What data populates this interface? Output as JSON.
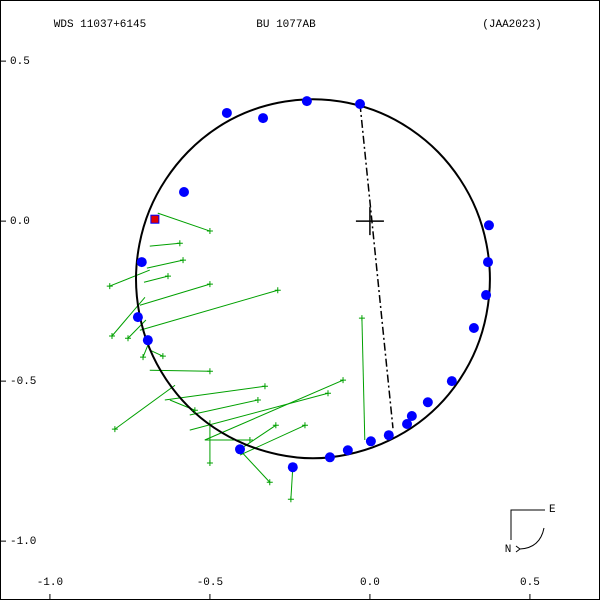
{
  "chart_data": {
    "type": "scatter",
    "title": "BU 1077AB",
    "subtitle": "WDS 11037+6145",
    "reference": "(JAA2023)",
    "compass": {
      "east": "E",
      "north": "N"
    },
    "xlim": [
      -1.156,
      0.719
    ],
    "ylim": [
      -1.184,
      0.691
    ],
    "xticks": [
      {
        "value": -1,
        "label": "-1.0"
      },
      {
        "value": -0.5,
        "label": "-0.5"
      },
      {
        "value": 0,
        "label": "0.0"
      },
      {
        "value": 0.5,
        "label": "0.5"
      }
    ],
    "yticks": [
      {
        "value": 0.5,
        "label": "0.5"
      },
      {
        "value": 0,
        "label": "0.0"
      },
      {
        "value": -0.5,
        "label": "-0.5"
      },
      {
        "value": -1,
        "label": "-1.0"
      }
    ],
    "orbit": {
      "color": "#000000",
      "x": [
        0.375,
        0.333,
        0.213,
        0.034,
        -0.178,
        -0.391,
        -0.569,
        -0.689,
        -0.731,
        -0.689,
        -0.569,
        -0.391,
        -0.178,
        0.034,
        0.213,
        0.333
      ],
      "y": [
        -0.181,
        0.034,
        0.216,
        0.338,
        0.381,
        0.338,
        0.216,
        0.034,
        -0.181,
        -0.397,
        -0.578,
        -0.697,
        -0.741,
        -0.697,
        -0.578,
        -0.397
      ]
    },
    "line_of_nodes": {
      "x": [
        -0.031,
        0.072
      ],
      "y": [
        0.366,
        -0.647
      ]
    },
    "series": [
      {
        "color": "#0000ff",
        "marker": "circle",
        "x": [
          -0.031,
          -0.197,
          -0.334,
          -0.447,
          -0.581,
          -0.713,
          -0.725,
          -0.694,
          -0.406,
          -0.241,
          -0.125,
          -0.069,
          0.003,
          0.059,
          0.116,
          0.131,
          0.181,
          0.256,
          0.325,
          0.363,
          0.369,
          0.372
        ],
        "y": [
          0.366,
          0.375,
          0.322,
          0.338,
          0.091,
          -0.128,
          -0.3,
          -0.372,
          -0.713,
          -0.769,
          -0.738,
          -0.716,
          -0.688,
          -0.669,
          -0.634,
          -0.609,
          -0.566,
          -0.5,
          -0.334,
          -0.231,
          -0.128,
          -0.013
        ]
      },
      {
        "color": "#e00000",
        "marker": "square",
        "x": [
          -0.672
        ],
        "y": [
          0.006
        ]
      },
      {
        "color": "#00a000",
        "marker": "plus",
        "x": [
          -0.5,
          -0.594,
          -0.584,
          -0.631,
          -0.813,
          -0.5,
          -0.288,
          -0.806,
          -0.756,
          -0.647,
          -0.5,
          -0.709,
          -0.328,
          -0.131,
          -0.084,
          -0.35,
          -0.797,
          -0.294,
          -0.547,
          -0.375,
          -0.313,
          -0.247,
          -0.025,
          -0.5,
          -0.203
        ],
        "y": [
          -0.031,
          -0.069,
          -0.122,
          -0.172,
          -0.203,
          -0.197,
          -0.216,
          -0.359,
          -0.366,
          -0.422,
          -0.469,
          -0.425,
          -0.516,
          -0.538,
          -0.497,
          -0.559,
          -0.65,
          -0.638,
          -0.591,
          -0.684,
          -0.816,
          -0.869,
          -0.303,
          -0.756,
          -0.638
        ],
        "x_end": [
          -0.663,
          -0.688,
          -0.697,
          -0.706,
          -0.688,
          -0.719,
          -0.719,
          -0.703,
          -0.7,
          -0.688,
          -0.688,
          -0.694,
          -0.641,
          -0.563,
          -0.516,
          -0.563,
          -0.609,
          -0.406,
          -0.625,
          -0.516,
          -0.406,
          -0.241,
          -0.016,
          -0.5,
          -0.406
        ],
        "y_end": [
          0.025,
          -0.078,
          -0.147,
          -0.191,
          -0.153,
          -0.263,
          -0.341,
          -0.238,
          -0.309,
          -0.403,
          -0.466,
          -0.388,
          -0.559,
          -0.653,
          -0.684,
          -0.606,
          -0.513,
          -0.713,
          -0.559,
          -0.684,
          -0.716,
          -0.769,
          -0.684,
          -0.622,
          -0.731
        ]
      }
    ]
  }
}
